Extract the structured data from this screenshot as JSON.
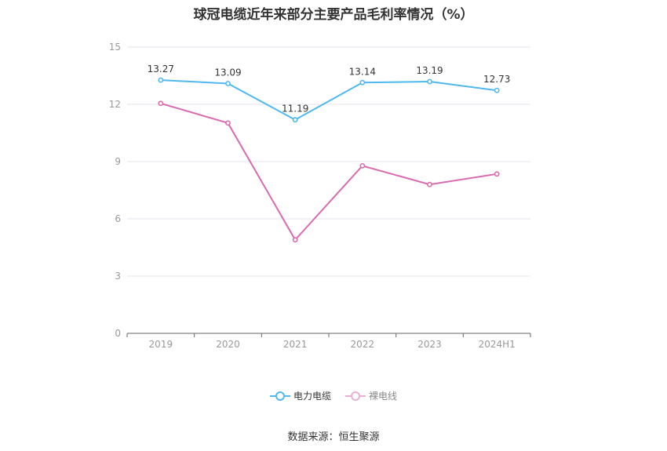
{
  "chart_data": {
    "type": "line",
    "title": "球冠电缆近年来部分主要产品毛利率情况（%）",
    "categories": [
      "2019",
      "2020",
      "2021",
      "2022",
      "2023",
      "2024H1"
    ],
    "ylim": [
      0,
      15
    ],
    "yticks": [
      "0",
      "3",
      "6",
      "9",
      "12",
      "15"
    ],
    "grid": true,
    "legend_position": "bottom",
    "series": [
      {
        "name": "电力电缆",
        "color": "#4fb8ef",
        "values": [
          13.27,
          13.09,
          11.19,
          13.14,
          13.19,
          12.73
        ],
        "labels": [
          "13.27",
          "13.09",
          "11.19",
          "13.14",
          "13.19",
          "12.73"
        ]
      },
      {
        "name": "裸电线",
        "color": "#d96aaf",
        "values": [
          12.05,
          11.02,
          4.9,
          8.78,
          7.8,
          8.35
        ]
      }
    ]
  },
  "source": "数据来源：恒生聚源"
}
